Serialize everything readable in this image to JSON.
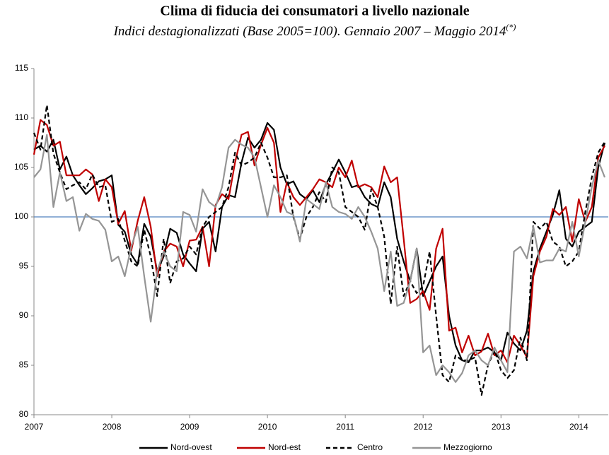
{
  "chart_data": {
    "type": "line",
    "title": "Clima di fiducia dei consumatori a livello nazionale",
    "subtitle": "Indici destagionalizzati (Base 2005=100). Gennaio 2007  – Maggio 2014",
    "subtitle_note": "(*)",
    "categories": [
      "2007",
      null,
      null,
      null,
      null,
      null,
      null,
      null,
      null,
      null,
      null,
      null,
      "2008",
      null,
      null,
      null,
      null,
      null,
      null,
      null,
      null,
      null,
      null,
      null,
      "2009",
      null,
      null,
      null,
      null,
      null,
      null,
      null,
      null,
      null,
      null,
      null,
      "2010",
      null,
      null,
      null,
      null,
      null,
      null,
      null,
      null,
      null,
      null,
      null,
      "2011",
      null,
      null,
      null,
      null,
      null,
      null,
      null,
      null,
      null,
      null,
      null,
      "2012",
      null,
      null,
      null,
      null,
      null,
      null,
      null,
      null,
      null,
      null,
      null,
      "2013",
      null,
      null,
      null,
      null,
      null,
      null,
      null,
      null,
      null,
      null,
      null,
      "2014",
      null,
      null,
      null,
      null
    ],
    "series": [
      {
        "name": "Nord-ovest",
        "color": "#000000",
        "dash": "solid",
        "values": [
          106.8,
          107.2,
          106.6,
          107.8,
          104.8,
          106.1,
          104.2,
          103.2,
          102.3,
          102.9,
          103.6,
          103.8,
          104.2,
          99.2,
          98.5,
          96.2,
          95.2,
          99.3,
          98.0,
          94.5,
          96.0,
          98.8,
          98.4,
          96.2,
          95.3,
          94.5,
          98.8,
          99.5,
          96.5,
          101.0,
          102.2,
          102.0,
          105.5,
          108.0,
          107.0,
          107.8,
          109.5,
          108.8,
          105.0,
          103.3,
          103.6,
          102.3,
          101.8,
          102.7,
          101.5,
          103.3,
          104.5,
          105.8,
          104.5,
          103.0,
          103.2,
          102.0,
          101.3,
          101.0,
          103.5,
          102.0,
          97.8,
          95.5,
          93.5,
          96.8,
          92.0,
          93.5,
          95.0,
          96.0,
          90.0,
          87.0,
          85.5,
          85.3,
          86.5,
          86.5,
          86.8,
          86.3,
          85.5,
          88.3,
          87.2,
          86.5,
          88.5,
          94.5,
          96.8,
          98.5,
          100.2,
          102.7,
          97.8,
          97.0,
          98.5,
          99.0,
          99.5,
          105.0,
          107.5
        ]
      },
      {
        "name": "Nord-est",
        "color": "#c00000",
        "dash": "solid",
        "values": [
          106.3,
          109.8,
          109.3,
          107.2,
          107.6,
          104.2,
          104.2,
          104.2,
          104.8,
          104.3,
          101.6,
          103.8,
          103.0,
          99.3,
          100.6,
          96.6,
          99.6,
          102.0,
          99.0,
          94.0,
          96.5,
          97.3,
          97.0,
          95.0,
          97.6,
          97.7,
          99.0,
          95.0,
          101.2,
          102.3,
          101.8,
          105.5,
          108.3,
          108.6,
          105.2,
          107.3,
          109.0,
          107.5,
          100.5,
          103.5,
          102.0,
          101.2,
          102.0,
          102.8,
          103.8,
          103.5,
          103.0,
          105.0,
          104.0,
          105.7,
          103.0,
          103.3,
          103.0,
          102.0,
          105.1,
          103.5,
          104.0,
          97.8,
          91.3,
          91.7,
          92.5,
          90.6,
          96.8,
          98.8,
          88.5,
          88.8,
          86.3,
          88.0,
          86.0,
          86.4,
          88.2,
          86.0,
          86.5,
          85.3,
          88.0,
          87.0,
          85.8,
          94.0,
          96.5,
          98.0,
          100.8,
          100.2,
          101.0,
          97.5,
          101.8,
          99.5,
          101.0,
          106.0,
          107.2
        ]
      },
      {
        "name": "Centro",
        "color": "#000000",
        "dash": "dashed",
        "values": [
          108.5,
          106.8,
          111.3,
          106.4,
          104.5,
          102.8,
          103.2,
          103.5,
          102.8,
          104.3,
          103.0,
          103.2,
          99.5,
          99.8,
          97.6,
          95.5,
          95.0,
          98.7,
          96.0,
          92.0,
          97.8,
          93.3,
          95.5,
          95.8,
          97.0,
          96.2,
          99.0,
          100.0,
          100.5,
          101.0,
          103.0,
          106.5,
          105.2,
          105.5,
          106.0,
          107.5,
          106.0,
          104.0,
          104.0,
          104.2,
          100.0,
          97.8,
          100.0,
          101.0,
          102.5,
          101.5,
          105.0,
          104.5,
          101.0,
          100.5,
          100.0,
          98.7,
          102.8,
          101.0,
          98.0,
          91.2,
          97.0,
          92.0,
          93.5,
          92.3,
          93.0,
          96.5,
          90.0,
          84.0,
          83.3,
          86.0,
          85.5,
          85.5,
          85.8,
          82.0,
          85.0,
          86.5,
          84.5,
          83.7,
          84.5,
          87.8,
          85.5,
          99.5,
          98.8,
          99.5,
          97.5,
          97.0,
          95.0,
          95.5,
          96.5,
          100.5,
          104.0,
          106.5,
          107.6
        ]
      },
      {
        "name": "Mezzogiorno",
        "color": "#959595",
        "dash": "solid",
        "values": [
          104.0,
          104.8,
          108.3,
          101.0,
          104.5,
          101.6,
          102.0,
          98.6,
          100.3,
          99.8,
          99.6,
          98.7,
          95.5,
          96.0,
          94.0,
          97.0,
          99.0,
          94.0,
          89.4,
          94.5,
          96.5,
          95.0,
          94.5,
          100.5,
          100.2,
          98.5,
          102.8,
          101.5,
          101.0,
          103.0,
          107.0,
          107.8,
          107.3,
          107.0,
          106.0,
          103.0,
          100.0,
          103.2,
          102.0,
          100.5,
          100.2,
          97.5,
          101.8,
          101.3,
          100.8,
          103.5,
          101.0,
          100.5,
          100.3,
          99.8,
          101.0,
          100.0,
          98.5,
          96.8,
          92.5,
          96.5,
          91.0,
          91.3,
          93.5,
          96.8,
          86.3,
          87.0,
          84.0,
          85.0,
          84.3,
          83.3,
          84.2,
          86.0,
          86.5,
          85.5,
          85.0,
          86.8,
          85.5,
          84.3,
          96.5,
          97.0,
          95.8,
          99.0,
          95.4,
          95.6,
          95.6,
          96.8,
          96.5,
          99.5,
          96.0,
          99.5,
          103.0,
          105.7,
          104.0
        ]
      }
    ],
    "reference_line": {
      "value": 100,
      "color": "#4f81bd"
    },
    "ylim": [
      80,
      115
    ],
    "yticks": [
      80,
      85,
      90,
      95,
      100,
      105,
      110,
      115
    ],
    "grid": false,
    "legend": "bottom"
  }
}
